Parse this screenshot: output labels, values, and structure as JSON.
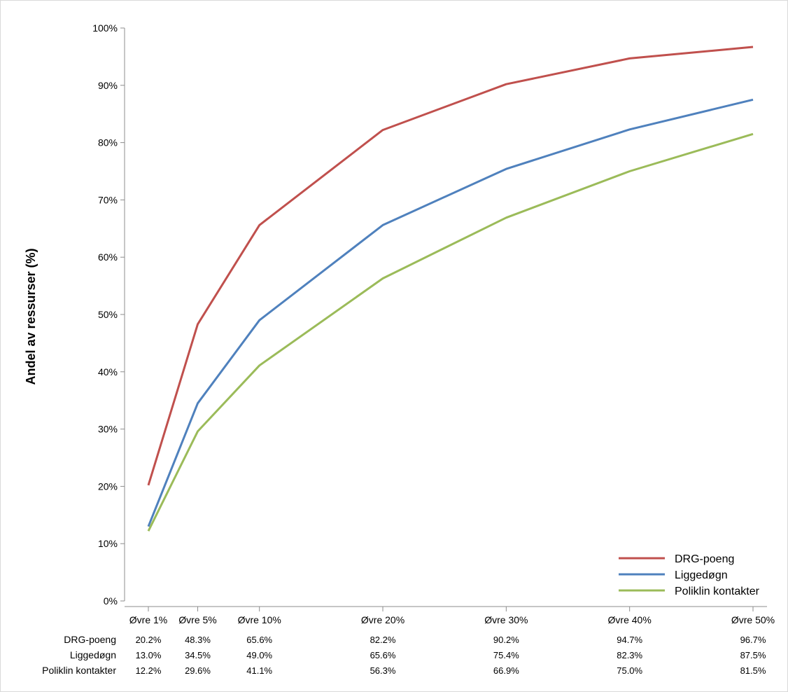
{
  "chart_data": {
    "type": "line",
    "title": "",
    "xlabel": "",
    "ylabel": "Andel av ressurser (%)",
    "ylim": [
      0,
      100
    ],
    "yticks": [
      "0%",
      "10%",
      "20%",
      "30%",
      "40%",
      "50%",
      "60%",
      "70%",
      "80%",
      "90%",
      "100%"
    ],
    "x_positions": [
      1,
      5,
      10,
      20,
      30,
      40,
      50
    ],
    "categories": [
      "Øvre 1%",
      "Øvre 5%",
      "Øvre 10%",
      "Øvre 20%",
      "Øvre 30%",
      "Øvre 40%",
      "Øvre 50%"
    ],
    "grid": false,
    "legend_position": "bottom-right",
    "series": [
      {
        "name": "DRG-poeng",
        "color": "#c0504d",
        "values": [
          20.2,
          48.3,
          65.6,
          82.2,
          90.2,
          94.7,
          96.7
        ],
        "labels": [
          "20.2%",
          "48.3%",
          "65.6%",
          "82.2%",
          "90.2%",
          "94.7%",
          "96.7%"
        ]
      },
      {
        "name": "Liggedøgn",
        "color": "#4f81bd",
        "values": [
          13.0,
          34.5,
          49.0,
          65.6,
          75.4,
          82.3,
          87.5
        ],
        "labels": [
          "13.0%",
          "34.5%",
          "49.0%",
          "65.6%",
          "75.4%",
          "82.3%",
          "87.5%"
        ]
      },
      {
        "name": "Poliklin kontakter",
        "color": "#9bbb59",
        "values": [
          12.2,
          29.6,
          41.1,
          56.3,
          66.9,
          75.0,
          81.5
        ],
        "labels": [
          "12.2%",
          "29.6%",
          "41.1%",
          "56.3%",
          "66.9%",
          "75.0%",
          "81.5%"
        ]
      }
    ]
  }
}
